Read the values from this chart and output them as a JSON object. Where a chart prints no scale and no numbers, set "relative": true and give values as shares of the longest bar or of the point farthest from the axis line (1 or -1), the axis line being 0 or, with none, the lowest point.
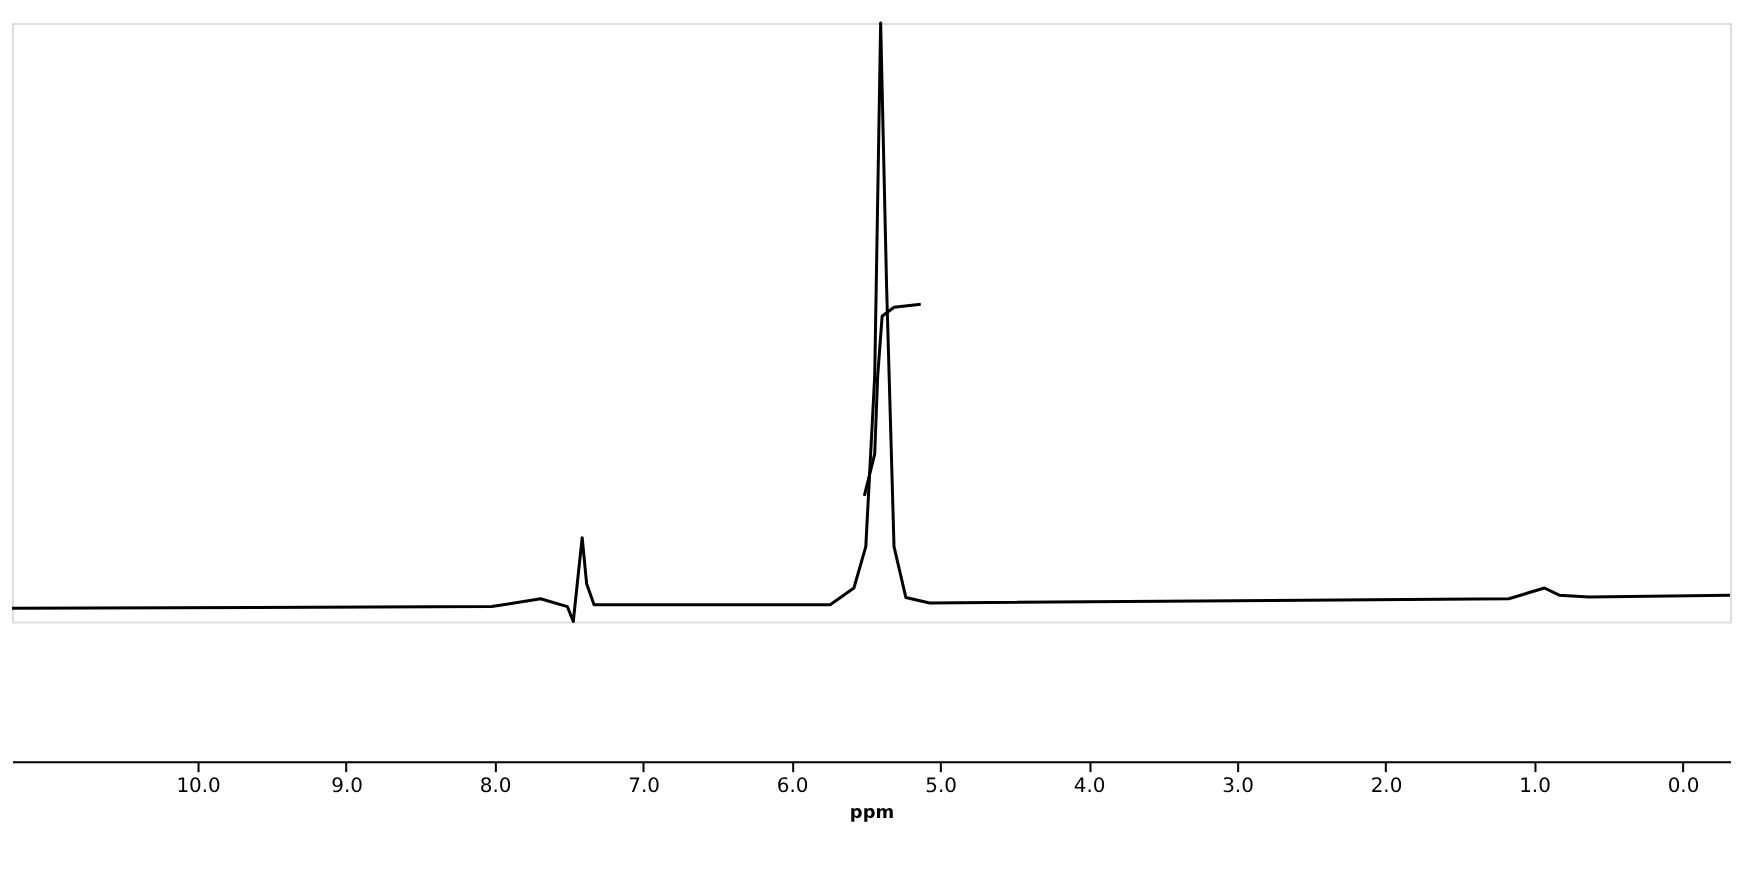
{
  "chart_data": {
    "type": "line",
    "relative": true,
    "xlabel": "ppm",
    "grid": false,
    "marker": "none",
    "line_style": "solid",
    "xlim": [
      11.25,
      -0.32
    ],
    "xticks": [
      {
        "value": 10,
        "label": "10.0"
      },
      {
        "value": 9,
        "label": "9.0"
      },
      {
        "value": 8,
        "label": "8.0"
      },
      {
        "value": 7,
        "label": "7.0"
      },
      {
        "value": 6,
        "label": "6.0"
      },
      {
        "value": 5,
        "label": "5.0"
      },
      {
        "value": 4,
        "label": "4.0"
      },
      {
        "value": 3,
        "label": "3.0"
      },
      {
        "value": 2,
        "label": "2.0"
      },
      {
        "value": 1,
        "label": "1.0"
      },
      {
        "value": 0,
        "label": "0.0"
      }
    ],
    "series": [
      {
        "color": "#000000",
        "x": [
          11.25,
          8.02,
          7.69,
          7.51,
          7.47,
          7.43,
          7.41,
          7.38,
          7.33,
          5.74,
          5.58,
          5.5,
          5.44,
          5.4,
          5.36,
          5.31,
          5.23,
          5.07,
          1.17,
          0.93,
          0.83,
          0.63,
          -0.32
        ],
        "values": [
          0.022,
          0.025,
          0.038,
          0.025,
          0,
          0.094,
          0.14,
          0.063,
          0.028,
          0.028,
          0.056,
          0.125,
          0.41,
          1,
          0.56,
          0.125,
          0.04,
          0.031,
          0.038,
          0.056,
          0.044,
          0.041,
          0.044
        ]
      },
      {
        "color": "#000000",
        "x": [
          5.51,
          5.44,
          5.42,
          5.39,
          5.31,
          5.13
        ],
        "values": [
          0.21,
          0.28,
          0.41,
          0.51,
          0.525,
          0.53
        ]
      }
    ]
  }
}
